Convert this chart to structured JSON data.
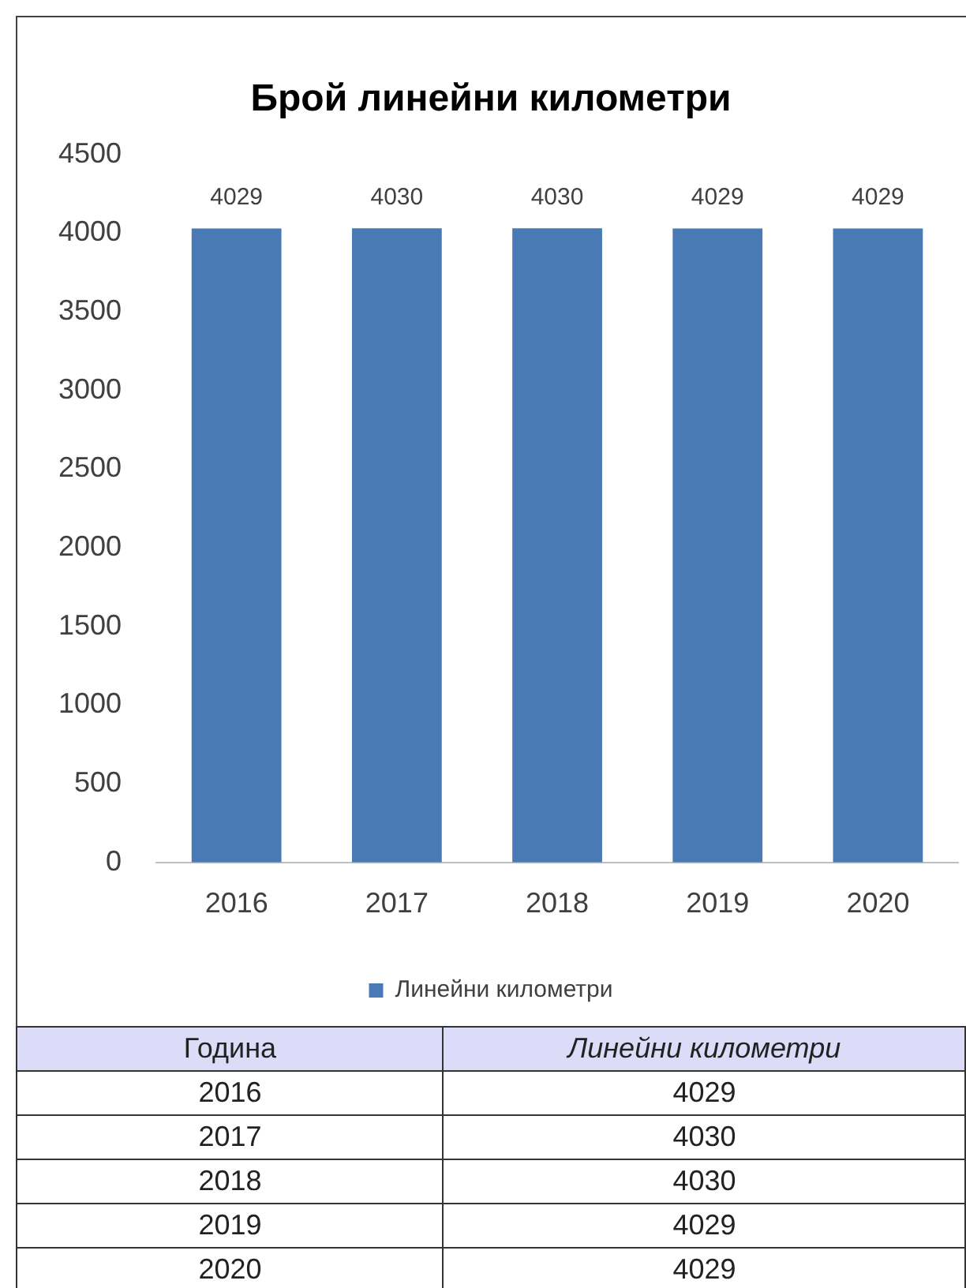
{
  "chart_data": {
    "type": "bar",
    "title": "Брой линейни километри",
    "categories": [
      "2016",
      "2017",
      "2018",
      "2019",
      "2020"
    ],
    "series": [
      {
        "name": "Линейни километри",
        "color": "#4a7ab5",
        "values": [
          4029,
          4030,
          4030,
          4029,
          4029
        ]
      }
    ],
    "ylim": [
      0,
      4500
    ],
    "yticks": [
      0,
      500,
      1000,
      1500,
      2000,
      2500,
      3000,
      3500,
      4000,
      4500
    ],
    "grid": false,
    "legend": "bottom",
    "data_labels": true,
    "annotations": [
      "Година",
      "4029",
      "4030",
      "4030",
      "4029",
      "4029"
    ]
  }
}
